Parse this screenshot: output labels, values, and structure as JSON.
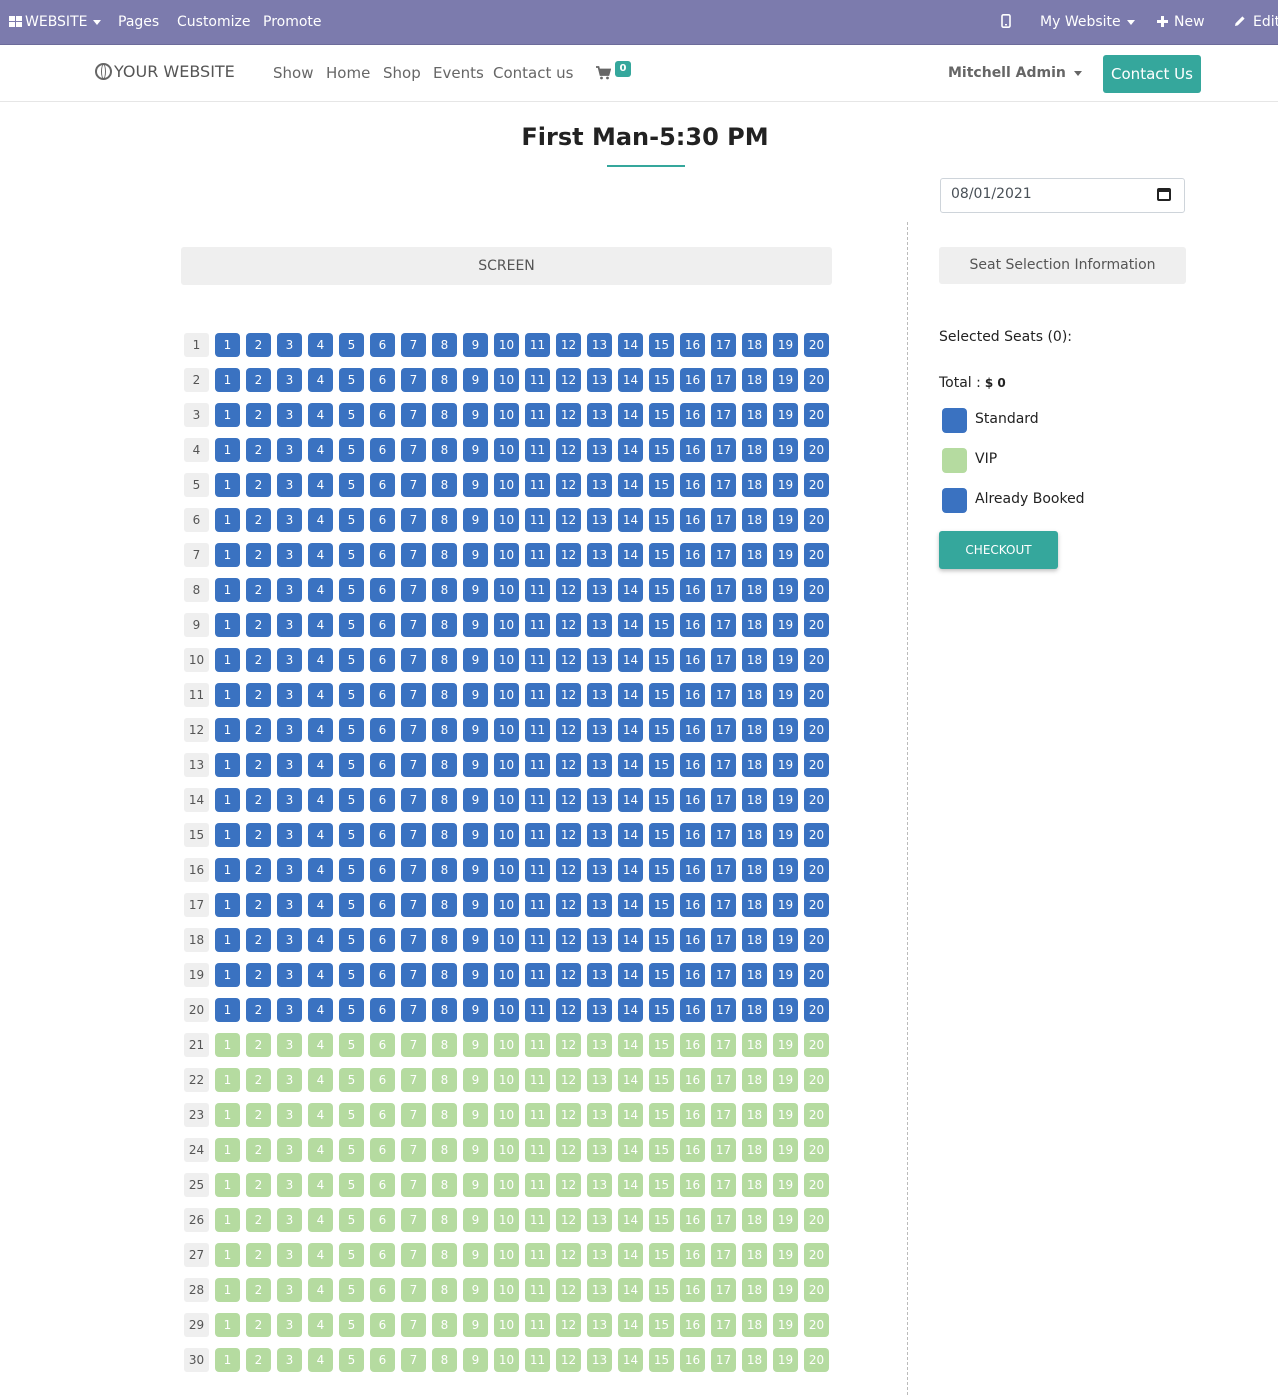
{
  "topbar": {
    "website_label": "WEBSITE",
    "pages": "Pages",
    "customize": "Customize",
    "promote": "Promote",
    "my_website": "My Website",
    "new_label": "New",
    "edit_label": "Edit"
  },
  "header": {
    "logo": "YOUR WEBSITE",
    "nav": [
      "Show",
      "Home",
      "Shop",
      "Events",
      "Contact us"
    ],
    "cart_count": "0",
    "user": "Mitchell Admin",
    "contact_button": "Contact Us"
  },
  "page": {
    "title": "First Man-5:30 PM",
    "date": "08/01/2021",
    "screen_label": "SCREEN"
  },
  "seating": {
    "rows": 30,
    "seats_per_row": 20,
    "standard_rows": [
      1,
      20
    ],
    "vip_rows": [
      21,
      30
    ]
  },
  "info": {
    "heading": "Seat Selection Information",
    "selected_seats": "Selected Seats (0):",
    "total_label": "Total :",
    "total_value": "$ 0",
    "legend": [
      {
        "label": "Standard",
        "color": "#3a72c1"
      },
      {
        "label": "VIP",
        "color": "#b5dba0"
      },
      {
        "label": "Already Booked",
        "color": "#3a72c1"
      }
    ],
    "checkout": "CHECKOUT"
  },
  "colors": {
    "topbar": "#7c7bad",
    "accent": "#35a79c",
    "standard": "#3a72c1",
    "vip": "#b5dba0"
  }
}
